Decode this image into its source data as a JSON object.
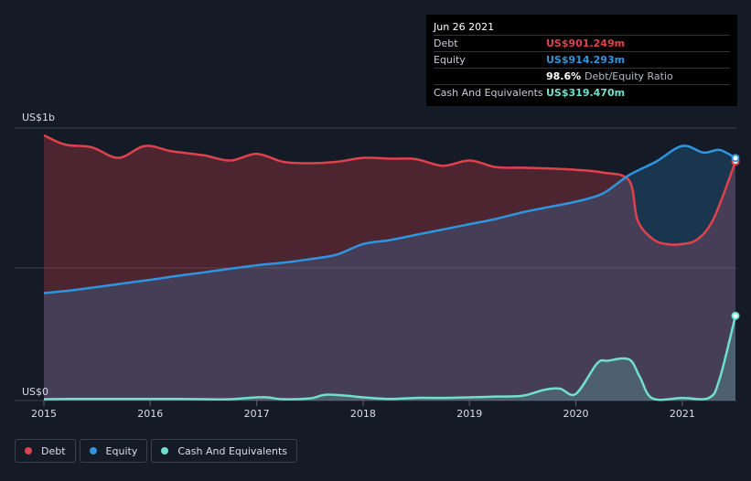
{
  "tooltip": {
    "date": "Jun 26 2021",
    "debt_label": "Debt",
    "debt_value": "US$901.249m",
    "equity_label": "Equity",
    "equity_value": "US$914.293m",
    "ratio_value": "98.6%",
    "ratio_label": "Debt/Equity Ratio",
    "cash_label": "Cash And Equivalents",
    "cash_value": "US$319.470m"
  },
  "colors": {
    "debt": "#e0424d",
    "equity": "#2e95e0",
    "cash": "#6fe0cd"
  },
  "chart_data": {
    "type": "area",
    "title": "",
    "xlabel": "",
    "ylabel": "",
    "y_top_label": "US$1b",
    "y_bottom_label": "US$0",
    "xlim": [
      2015,
      2021.5
    ],
    "ylim": [
      0,
      1000
    ],
    "x_ticks": [
      "2015",
      "2016",
      "2017",
      "2018",
      "2019",
      "2020",
      "2021"
    ],
    "grid": true,
    "series": [
      {
        "name": "Debt",
        "x": [
          2015.0,
          2015.2,
          2015.45,
          2015.7,
          2015.95,
          2016.2,
          2016.5,
          2016.75,
          2017.0,
          2017.25,
          2017.5,
          2017.75,
          2018.0,
          2018.25,
          2018.5,
          2018.75,
          2019.0,
          2019.25,
          2019.5,
          2019.75,
          2020.0,
          2020.25,
          2020.5,
          2020.58,
          2020.72,
          2020.85,
          2021.0,
          2021.15,
          2021.3,
          2021.5
        ],
        "values": [
          1000,
          965,
          955,
          915,
          960,
          940,
          925,
          905,
          930,
          900,
          895,
          900,
          915,
          912,
          910,
          885,
          905,
          880,
          878,
          875,
          870,
          860,
          830,
          680,
          610,
          590,
          590,
          610,
          690,
          901.249
        ]
      },
      {
        "name": "Equity",
        "x": [
          2015.0,
          2015.25,
          2015.5,
          2015.75,
          2016.0,
          2016.25,
          2016.5,
          2016.75,
          2017.0,
          2017.25,
          2017.5,
          2017.75,
          2018.0,
          2018.25,
          2018.5,
          2018.75,
          2019.0,
          2019.25,
          2019.5,
          2019.75,
          2020.0,
          2020.25,
          2020.5,
          2020.75,
          2021.0,
          2021.2,
          2021.35,
          2021.5
        ],
        "values": [
          405,
          415,
          428,
          442,
          455,
          470,
          483,
          497,
          510,
          520,
          533,
          550,
          590,
          605,
          625,
          645,
          665,
          685,
          710,
          730,
          750,
          780,
          850,
          900,
          960,
          935,
          945,
          914.293
        ]
      },
      {
        "name": "Cash And Equivalents",
        "x": [
          2015.0,
          2015.25,
          2015.5,
          2015.75,
          2016.0,
          2016.25,
          2016.5,
          2016.75,
          2017.0,
          2017.1,
          2017.25,
          2017.5,
          2017.65,
          2017.85,
          2018.0,
          2018.25,
          2018.5,
          2018.75,
          2019.0,
          2019.25,
          2019.5,
          2019.7,
          2019.85,
          2020.0,
          2020.2,
          2020.3,
          2020.5,
          2020.6,
          2020.72,
          2021.0,
          2021.25,
          2021.35,
          2021.5
        ],
        "values": [
          5,
          6,
          6,
          6,
          6,
          6,
          5,
          5,
          12,
          12,
          5,
          8,
          22,
          18,
          12,
          6,
          10,
          10,
          12,
          15,
          18,
          40,
          45,
          25,
          140,
          150,
          155,
          90,
          8,
          10,
          10,
          80,
          319.47
        ]
      }
    ]
  }
}
